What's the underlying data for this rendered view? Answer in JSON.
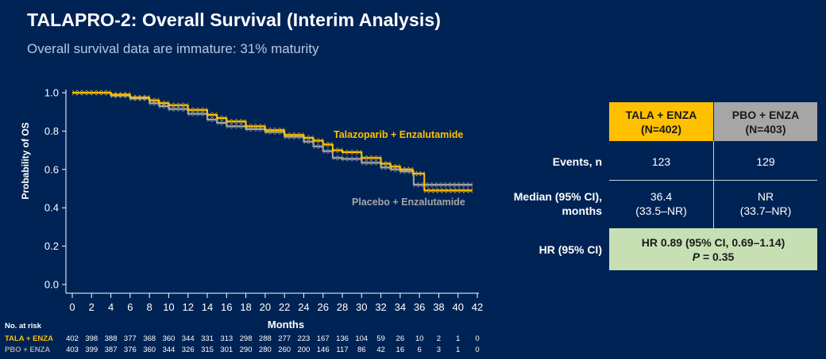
{
  "title": "TALAPRO-2: Overall Survival (Interim Analysis)",
  "subtitle": "Overall survival data are immature: 31% maturity",
  "colors": {
    "background": "#002355",
    "tala": "#ffc000",
    "pbo": "#a6a6a6",
    "hr_box": "#c6e0b4"
  },
  "chart_data": {
    "type": "line",
    "subtype": "kaplan-meier",
    "title": "",
    "xlabel": "Months",
    "ylabel": "Probability of OS",
    "xlim": [
      0,
      42
    ],
    "ylim": [
      0.0,
      1.0
    ],
    "x_ticks": [
      0,
      2,
      4,
      6,
      8,
      10,
      12,
      14,
      16,
      18,
      20,
      22,
      24,
      26,
      28,
      30,
      32,
      34,
      36,
      38,
      40,
      42
    ],
    "y_ticks": [
      "0.0",
      "0.2",
      "0.4",
      "0.6",
      "0.8",
      "1.0"
    ],
    "y_tick_values": [
      0.0,
      0.2,
      0.4,
      0.6,
      0.8,
      1.0
    ],
    "grid": false,
    "series": [
      {
        "name": "Talazoparib + Enzalutamide",
        "color": "#ffc000",
        "x": [
          0,
          2,
          4,
          6,
          8,
          9,
          10,
          12,
          14,
          15,
          16,
          18,
          20,
          22,
          24,
          25,
          26,
          27,
          28,
          30,
          32,
          33,
          34,
          35.3,
          36.5,
          36.5,
          41.5
        ],
        "y": [
          1.0,
          1.0,
          0.99,
          0.975,
          0.96,
          0.946,
          0.935,
          0.91,
          0.885,
          0.868,
          0.85,
          0.825,
          0.805,
          0.78,
          0.765,
          0.75,
          0.73,
          0.7,
          0.69,
          0.66,
          0.63,
          0.615,
          0.6,
          0.578,
          0.578,
          0.49,
          0.49
        ]
      },
      {
        "name": "Placebo + Enzalutamide",
        "color": "#a6a6a6",
        "x": [
          0,
          2,
          4,
          6,
          8,
          9,
          10,
          12,
          14,
          15,
          16,
          18,
          20,
          22,
          24,
          25,
          26,
          27,
          28,
          30,
          32,
          33,
          34,
          35.4,
          35.4,
          41.5
        ],
        "y": [
          1.0,
          1.0,
          0.985,
          0.97,
          0.945,
          0.93,
          0.915,
          0.89,
          0.86,
          0.843,
          0.825,
          0.81,
          0.795,
          0.77,
          0.745,
          0.72,
          0.695,
          0.66,
          0.655,
          0.635,
          0.61,
          0.6,
          0.59,
          0.578,
          0.52,
          0.52
        ]
      }
    ],
    "legend": [
      {
        "label": "Talazoparib + Enzalutamide",
        "placement": "center-right, above curves"
      },
      {
        "label": "Placebo + Enzalutamide",
        "placement": "center-right, below curves"
      }
    ],
    "at_risk": {
      "title": "No. at risk",
      "rows": [
        {
          "label": "TALA + ENZA",
          "values": [
            402,
            398,
            388,
            377,
            368,
            360,
            344,
            331,
            313,
            298,
            288,
            277,
            223,
            167,
            136,
            104,
            59,
            26,
            10,
            2,
            1,
            0
          ]
        },
        {
          "label": "PBO + ENZA",
          "values": [
            403,
            399,
            387,
            376,
            360,
            344,
            326,
            315,
            301,
            290,
            280,
            260,
            200,
            146,
            117,
            86,
            42,
            16,
            6,
            3,
            1,
            0
          ]
        }
      ]
    }
  },
  "table": {
    "headers": [
      {
        "line1": "TALA + ENZA",
        "line2": "(N=402)"
      },
      {
        "line1": "PBO + ENZA",
        "line2": "(N=403)"
      }
    ],
    "rows": [
      {
        "label": "Events, n",
        "tala": "123",
        "pbo": "129"
      },
      {
        "label_line1": "Median (95% CI),",
        "label_line2": "months",
        "tala_line1": "36.4",
        "tala_line2": "(33.5–NR)",
        "pbo_line1": "NR",
        "pbo_line2": "(33.7–NR)"
      },
      {
        "label": "HR (95% CI)",
        "value_line1": "HR 0.89 (95% CI, 0.69–1.14)",
        "value_line2_italic": "P",
        "value_line2_rest": " = 0.35"
      }
    ]
  }
}
